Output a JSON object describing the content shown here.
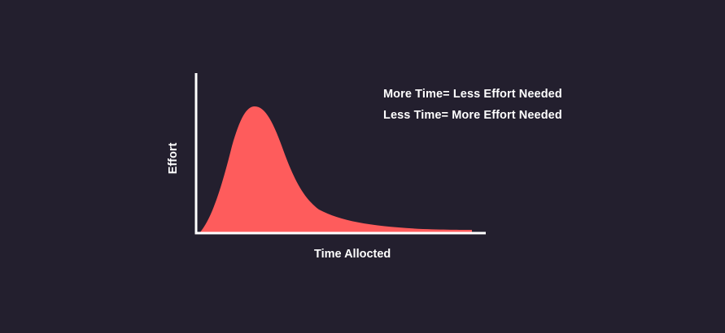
{
  "diagram": {
    "annotations": [
      "More Time= Less Effort Needed",
      "Less Time= More Effort Needed"
    ],
    "x_axis_label": "Time Allocted",
    "y_axis_label": "Effort",
    "curve_color": "#fe5c5c",
    "axis_color": "#ffffff",
    "background_color": "#231f2e"
  }
}
